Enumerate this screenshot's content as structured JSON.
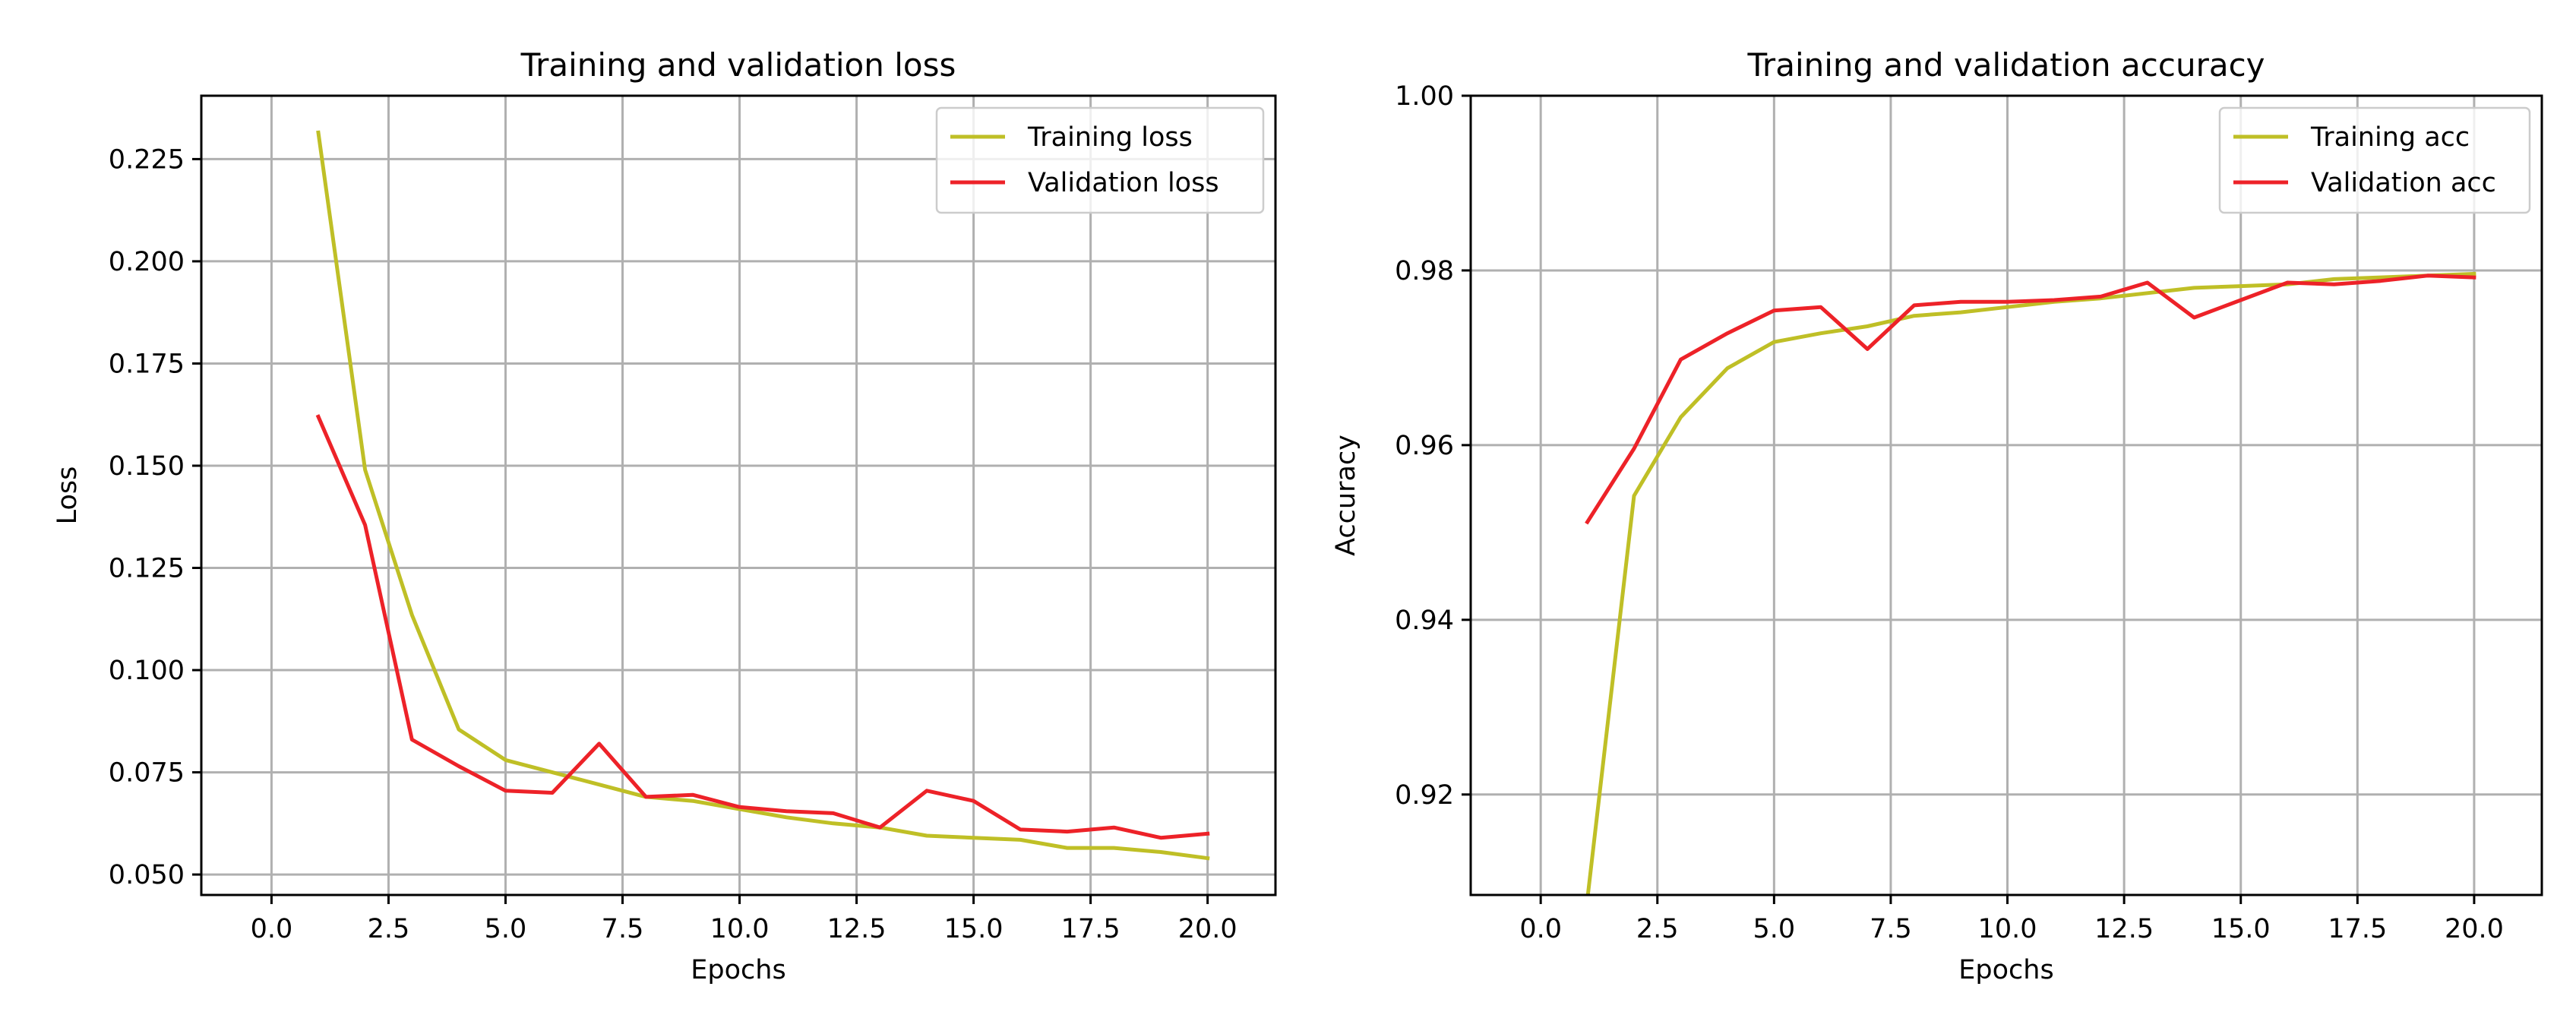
{
  "chart_data": [
    {
      "type": "line",
      "title": "Training and validation loss",
      "xlabel": "Epochs",
      "ylabel": "Loss",
      "xlim": [
        -1.5,
        21.45
      ],
      "ylim": [
        0.045,
        0.2405
      ],
      "xticks": [
        0.0,
        2.5,
        5.0,
        7.5,
        10.0,
        12.5,
        15.0,
        17.5,
        20.0
      ],
      "xtick_labels": [
        "0.0",
        "2.5",
        "5.0",
        "7.5",
        "10.0",
        "12.5",
        "15.0",
        "17.5",
        "20.0"
      ],
      "yticks": [
        0.05,
        0.075,
        0.1,
        0.125,
        0.15,
        0.175,
        0.2,
        0.225
      ],
      "ytick_labels": [
        "0.050",
        "0.075",
        "0.100",
        "0.125",
        "0.150",
        "0.175",
        "0.200",
        "0.225"
      ],
      "grid": true,
      "legend_position": "top-right",
      "x": [
        1,
        2,
        3,
        4,
        5,
        6,
        7,
        8,
        9,
        10,
        11,
        12,
        13,
        14,
        15,
        16,
        17,
        18,
        19,
        20
      ],
      "series": [
        {
          "name": "Training loss",
          "color": "#bfbf26",
          "values": [
            0.2315,
            0.149,
            0.1135,
            0.0855,
            0.078,
            0.075,
            0.072,
            0.069,
            0.068,
            0.066,
            0.064,
            0.0625,
            0.0615,
            0.0595,
            0.059,
            0.0585,
            0.0565,
            0.0565,
            0.0555,
            0.054
          ]
        },
        {
          "name": "Validation loss",
          "color": "#ed2228",
          "values": [
            0.162,
            0.1355,
            0.083,
            0.0765,
            0.0705,
            0.07,
            0.082,
            0.069,
            0.0695,
            0.0665,
            0.0655,
            0.065,
            0.0615,
            0.0705,
            0.068,
            0.061,
            0.0605,
            0.0615,
            0.059,
            0.06
          ]
        }
      ]
    },
    {
      "type": "line",
      "title": "Training and validation accuracy",
      "xlabel": "Epochs",
      "ylabel": "Accuracy",
      "xlim": [
        -1.5,
        21.45
      ],
      "ylim": [
        0.9085,
        1.0
      ],
      "xticks": [
        0.0,
        2.5,
        5.0,
        7.5,
        10.0,
        12.5,
        15.0,
        17.5,
        20.0
      ],
      "xtick_labels": [
        "0.0",
        "2.5",
        "5.0",
        "7.5",
        "10.0",
        "12.5",
        "15.0",
        "17.5",
        "20.0"
      ],
      "yticks": [
        0.92,
        0.94,
        0.96,
        0.98,
        1.0
      ],
      "ytick_labels": [
        "0.92",
        "0.94",
        "0.96",
        "0.98",
        "1.00"
      ],
      "grid": true,
      "legend_position": "top-right",
      "x": [
        1,
        2,
        3,
        4,
        5,
        6,
        7,
        8,
        9,
        10,
        11,
        12,
        13,
        14,
        15,
        16,
        17,
        18,
        19,
        20
      ],
      "series": [
        {
          "name": "Training acc",
          "color": "#bfbf26",
          "values": [
            0.908,
            0.9542,
            0.9632,
            0.9688,
            0.9718,
            0.9728,
            0.9736,
            0.9748,
            0.9752,
            0.9758,
            0.9764,
            0.9768,
            0.9774,
            0.978,
            0.9782,
            0.9784,
            0.979,
            0.9792,
            0.9794,
            0.9796
          ]
        },
        {
          "name": "Validation acc",
          "color": "#ed2228",
          "values": [
            0.9512,
            0.9596,
            0.9698,
            0.9728,
            0.9754,
            0.9758,
            0.971,
            0.976,
            0.9764,
            0.9764,
            0.9766,
            0.977,
            0.9786,
            0.9746,
            0.9766,
            0.9786,
            0.9784,
            0.9788,
            0.9794,
            0.9792
          ]
        }
      ]
    }
  ]
}
